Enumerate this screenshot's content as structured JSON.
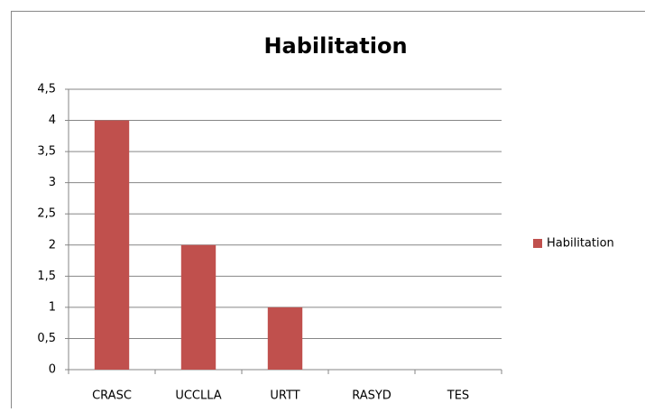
{
  "chart_data": {
    "type": "bar",
    "title": "Habilitation",
    "categories": [
      "CRASC",
      "UCCLLA",
      "URTT",
      "RASYD",
      "TES"
    ],
    "series": [
      {
        "name": "Habilitation",
        "color": "#c0504d",
        "values": [
          4,
          2,
          1,
          0,
          0
        ]
      }
    ],
    "ylim": [
      0,
      4.5
    ],
    "yticks": [
      0,
      {
        "value": 0.5,
        "label": "0,5"
      },
      1,
      {
        "value": 1.5,
        "label": "1,5"
      },
      2,
      {
        "value": 2.5,
        "label": "2,5"
      },
      3,
      {
        "value": 3.5,
        "label": "3,5"
      },
      4,
      {
        "value": 4.5,
        "label": "4,5"
      }
    ],
    "grid": true,
    "legend": "right"
  }
}
